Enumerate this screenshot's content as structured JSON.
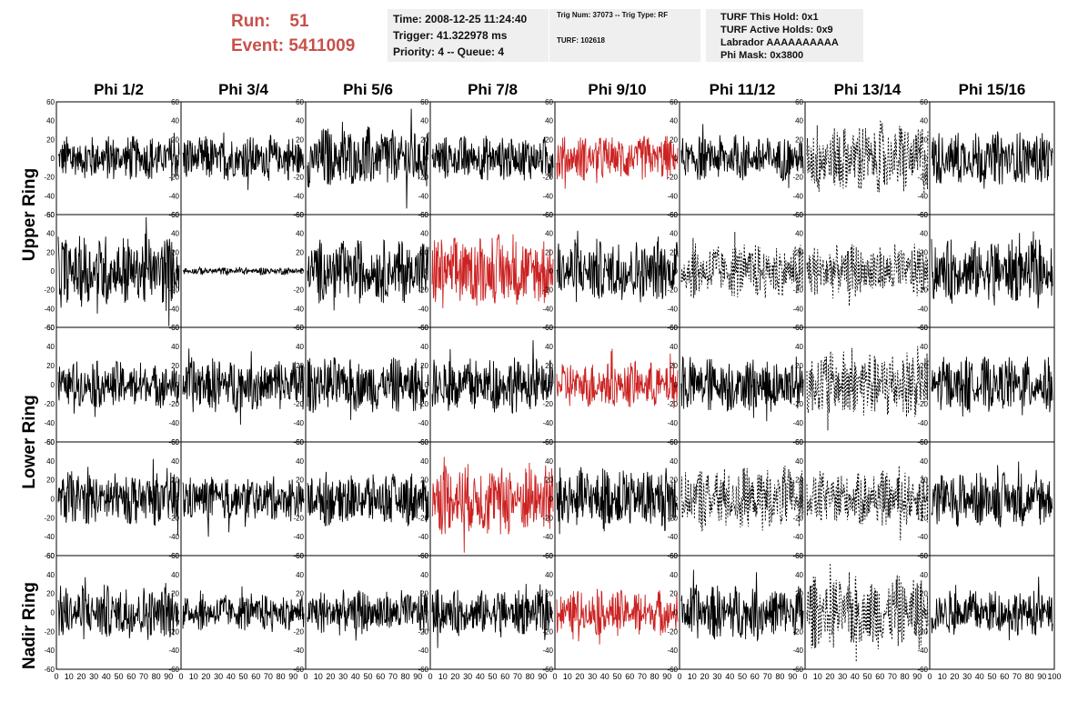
{
  "header": {
    "run_label": "Run:",
    "run_value": "51",
    "event_label": "Event:",
    "event_value": "5411009",
    "time": "Time: 2008-12-25 11:24:40",
    "trigger": "Trigger: 41.322978 ms",
    "priority": "Priority: 4 -- Queue: 4",
    "trig_num": "Trig Num: 37073 -- Trig Type: RF",
    "turf": "TURF: 102618",
    "turf_this_hold": "TURF This Hold: 0x1",
    "turf_active_holds": "TURF Active Holds: 0x9",
    "labrador": "Labrador AAAAAAAAAA",
    "phi_mask": "Phi Mask: 0x3800"
  },
  "chart_data": {
    "type": "line",
    "columns": [
      "Phi 1/2",
      "Phi 3/4",
      "Phi 5/6",
      "Phi 7/8",
      "Phi 9/10",
      "Phi 11/12",
      "Phi 13/14",
      "Phi 15/16"
    ],
    "ring_labels": [
      {
        "text": "Upper Ring"
      },
      {
        "text": "Lower Ring"
      },
      {
        "text": "Nadir Ring"
      }
    ],
    "ylim": [
      -60,
      60
    ],
    "xlim": [
      0,
      100
    ],
    "y_ticks": [
      "60",
      "40",
      "20",
      "0",
      "-20",
      "-40",
      "-60"
    ],
    "x_ticks": [
      "0",
      "10",
      "20",
      "30",
      "40",
      "50",
      "60",
      "70",
      "80",
      "90",
      "100"
    ],
    "colors": {
      "normal": "#000000",
      "triggered": "#cc2222",
      "masked": "#000000"
    },
    "panel_styles": [
      [
        "normal",
        "normal",
        "normal",
        "normal",
        "triggered",
        "normal",
        "masked",
        "normal"
      ],
      [
        "normal",
        "normal",
        "normal",
        "triggered",
        "normal",
        "masked",
        "masked",
        "normal"
      ],
      [
        "normal",
        "normal",
        "normal",
        "normal",
        "triggered",
        "normal",
        "masked",
        "normal"
      ],
      [
        "normal",
        "normal",
        "normal",
        "triggered",
        "normal",
        "masked",
        "masked",
        "normal"
      ],
      [
        "normal",
        "normal",
        "normal",
        "normal",
        "triggered",
        "normal",
        "masked",
        "normal"
      ]
    ],
    "panel_amplitudes": [
      [
        25,
        25,
        35,
        25,
        25,
        25,
        40,
        30
      ],
      [
        40,
        4,
        35,
        40,
        35,
        30,
        30,
        35
      ],
      [
        25,
        30,
        30,
        30,
        25,
        30,
        40,
        30
      ],
      [
        30,
        25,
        30,
        40,
        35,
        35,
        30,
        30
      ],
      [
        30,
        20,
        25,
        25,
        25,
        30,
        40,
        25
      ]
    ]
  }
}
